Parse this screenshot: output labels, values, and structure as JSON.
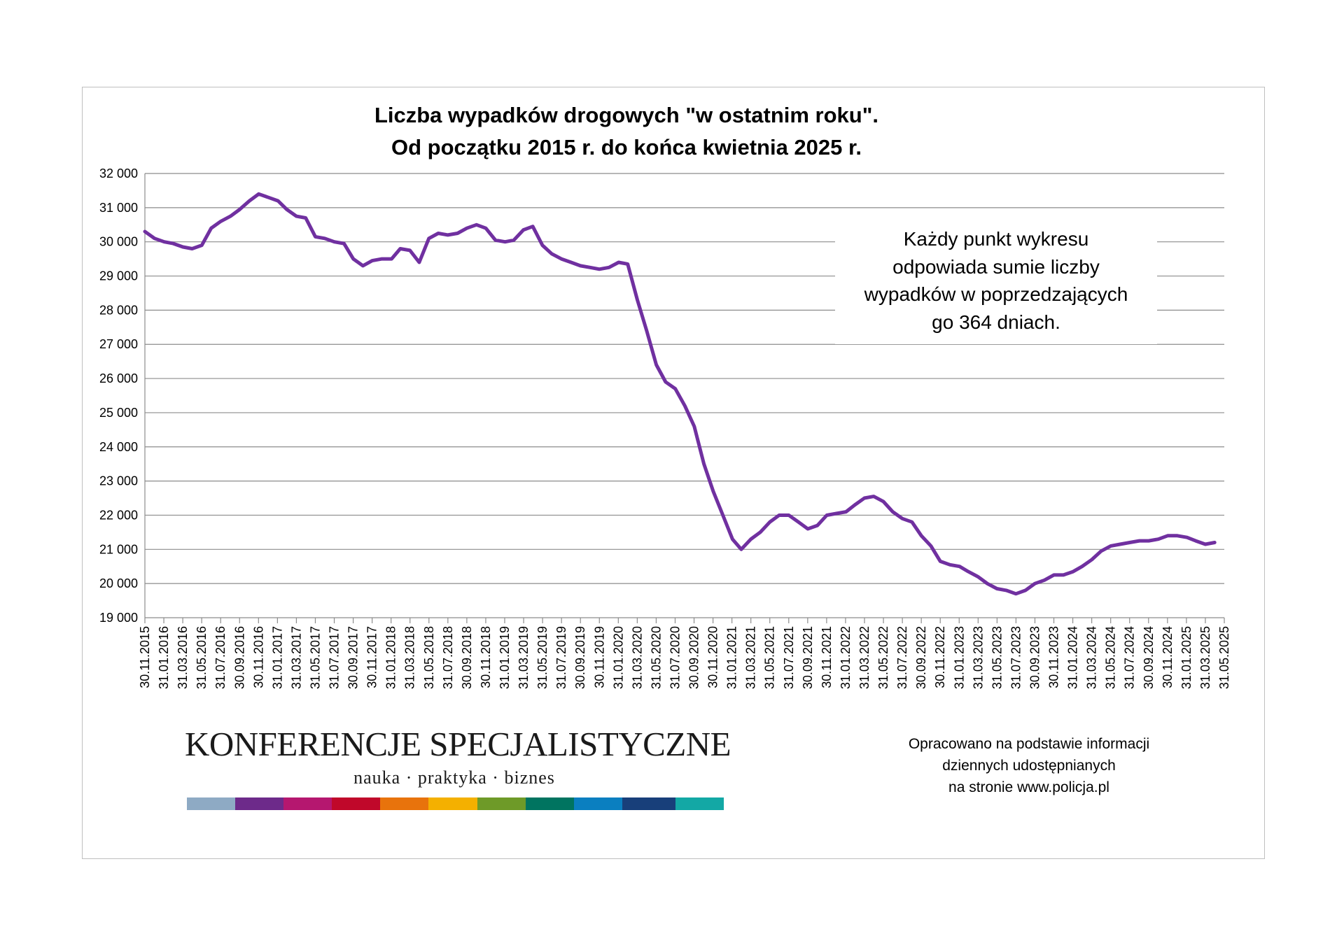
{
  "chart_data": {
    "type": "line",
    "title_line1": "Liczba wypadków drogowych \"w ostatnim roku\".",
    "title_line2": "Od początku 2015 r. do końca kwietnia 2025 r.",
    "xlabel": "",
    "ylabel": "",
    "ylim": [
      19000,
      32000
    ],
    "yticks": [
      19000,
      20000,
      21000,
      22000,
      23000,
      24000,
      25000,
      26000,
      27000,
      28000,
      29000,
      30000,
      31000,
      32000
    ],
    "ytick_labels": [
      "19 000",
      "20 000",
      "21 000",
      "22 000",
      "23 000",
      "24 000",
      "25 000",
      "26 000",
      "27 000",
      "28 000",
      "29 000",
      "30 000",
      "31 000",
      "32 000"
    ],
    "xtick_labels": [
      "30.11.2015",
      "31.01.2016",
      "31.03.2016",
      "31.05.2016",
      "31.07.2016",
      "30.09.2016",
      "30.11.2016",
      "31.01.2017",
      "31.03.2017",
      "31.05.2017",
      "31.07.2017",
      "30.09.2017",
      "30.11.2017",
      "31.01.2018",
      "31.03.2018",
      "31.05.2018",
      "31.07.2018",
      "30.09.2018",
      "30.11.2018",
      "31.01.2019",
      "31.03.2019",
      "31.05.2019",
      "31.07.2019",
      "30.09.2019",
      "30.11.2019",
      "31.01.2020",
      "31.03.2020",
      "31.05.2020",
      "31.07.2020",
      "30.09.2020",
      "30.11.2020",
      "31.01.2021",
      "31.03.2021",
      "31.05.2021",
      "31.07.2021",
      "30.09.2021",
      "30.11.2021",
      "31.01.2022",
      "31.03.2022",
      "31.05.2022",
      "31.07.2022",
      "30.09.2022",
      "30.11.2022",
      "31.01.2023",
      "31.03.2023",
      "31.05.2023",
      "31.07.2023",
      "30.09.2023",
      "30.11.2023",
      "31.01.2024",
      "31.03.2024",
      "31.05.2024",
      "31.07.2024",
      "30.09.2024",
      "30.11.2024",
      "31.01.2025",
      "31.03.2025",
      "31.05.2025"
    ],
    "grid": true,
    "legend": "none",
    "series": [
      {
        "color": "#7030a0",
        "x": [
          "2015-11-30",
          "2015-12-31",
          "2016-01-31",
          "2016-02-29",
          "2016-03-31",
          "2016-04-30",
          "2016-05-31",
          "2016-06-30",
          "2016-07-31",
          "2016-08-31",
          "2016-09-30",
          "2016-10-31",
          "2016-11-30",
          "2016-12-31",
          "2017-01-31",
          "2017-02-28",
          "2017-03-31",
          "2017-04-30",
          "2017-05-31",
          "2017-06-30",
          "2017-07-31",
          "2017-08-31",
          "2017-09-30",
          "2017-10-31",
          "2017-11-30",
          "2017-12-31",
          "2018-01-31",
          "2018-02-28",
          "2018-03-31",
          "2018-04-30",
          "2018-05-31",
          "2018-06-30",
          "2018-07-31",
          "2018-08-31",
          "2018-09-30",
          "2018-10-31",
          "2018-11-30",
          "2018-12-31",
          "2019-01-31",
          "2019-02-28",
          "2019-03-31",
          "2019-04-30",
          "2019-05-31",
          "2019-06-30",
          "2019-07-31",
          "2019-08-31",
          "2019-09-30",
          "2019-10-31",
          "2019-11-30",
          "2019-12-31",
          "2020-01-31",
          "2020-02-29",
          "2020-03-31",
          "2020-04-30",
          "2020-05-31",
          "2020-06-30",
          "2020-07-31",
          "2020-08-31",
          "2020-09-30",
          "2020-10-31",
          "2020-11-30",
          "2020-12-31",
          "2021-01-31",
          "2021-02-28",
          "2021-03-31",
          "2021-04-30",
          "2021-05-31",
          "2021-06-30",
          "2021-07-31",
          "2021-08-31",
          "2021-09-30",
          "2021-10-31",
          "2021-11-30",
          "2021-12-31",
          "2022-01-31",
          "2022-02-28",
          "2022-03-31",
          "2022-04-30",
          "2022-05-31",
          "2022-06-30",
          "2022-07-31",
          "2022-08-31",
          "2022-09-30",
          "2022-10-31",
          "2022-11-30",
          "2022-12-31",
          "2023-01-31",
          "2023-02-28",
          "2023-03-31",
          "2023-04-30",
          "2023-05-31",
          "2023-06-30",
          "2023-07-31",
          "2023-08-31",
          "2023-09-30",
          "2023-10-31",
          "2023-11-30",
          "2023-12-31",
          "2024-01-31",
          "2024-02-29",
          "2024-03-31",
          "2024-04-30",
          "2024-05-31",
          "2024-06-30",
          "2024-07-31",
          "2024-08-31",
          "2024-09-30",
          "2024-10-31",
          "2024-11-30",
          "2024-12-31",
          "2025-01-31",
          "2025-02-28",
          "2025-03-31",
          "2025-04-30"
        ],
        "y": [
          30300,
          30100,
          30000,
          29950,
          29850,
          29800,
          29900,
          30400,
          30600,
          30750,
          30950,
          31200,
          31400,
          31300,
          31200,
          30950,
          30750,
          30700,
          30150,
          30100,
          30000,
          29950,
          29500,
          29300,
          29450,
          29500,
          29500,
          29800,
          29750,
          29400,
          30100,
          30250,
          30200,
          30250,
          30400,
          30500,
          30400,
          30050,
          30000,
          30050,
          30350,
          30450,
          29900,
          29650,
          29500,
          29400,
          29300,
          29250,
          29200,
          29250,
          29400,
          29350,
          28300,
          27400,
          26400,
          25900,
          25700,
          25200,
          24600,
          23500,
          22700,
          22000,
          21300,
          21000,
          21300,
          21500,
          21800,
          22000,
          22000,
          21800,
          21600,
          21700,
          22000,
          22050,
          22100,
          22300,
          22500,
          22550,
          22400,
          22100,
          21900,
          21800,
          21400,
          21100,
          20650,
          20550,
          20500,
          20350,
          20200,
          20000,
          19850,
          19800,
          19700,
          19800,
          20000,
          20100,
          20250,
          20250,
          20350,
          20500,
          20700,
          20950,
          21100,
          21150,
          21200,
          21250,
          21250,
          21300,
          21400,
          21400,
          21350,
          21250,
          21150,
          21200
        ]
      }
    ]
  },
  "note_lines": [
    "Każdy punkt wykresu",
    "odpowiada sumie liczby",
    "wypadków w poprzedzających",
    "go 364 dniach."
  ],
  "credit_lines": [
    "Opracowano na podstawie informacji",
    "dziennych udostępnianych",
    "na stronie www.policja.pl"
  ],
  "logo": {
    "title": "KONFERENCJE SPECJALISTYCZNE",
    "subtitle": "nauka · praktyka · biznes",
    "bar_colors": [
      "#8eaac4",
      "#6d2a8a",
      "#b5176f",
      "#c0082a",
      "#e8730c",
      "#f4b000",
      "#6e9a28",
      "#007460",
      "#0a7fc0",
      "#183f7a",
      "#13a8a5"
    ]
  }
}
